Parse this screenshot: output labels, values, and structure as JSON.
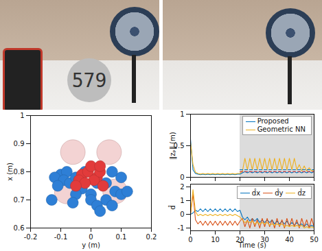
{
  "photos": {
    "display_reading": "579"
  },
  "chart_data": [
    {
      "type": "scatter",
      "xlabel": "y (m)",
      "ylabel": "x (m)",
      "xlim": [
        -0.2,
        0.2
      ],
      "ylim": [
        0.6,
        1
      ],
      "xticks": [
        -0.2,
        -0.1,
        0,
        0.1,
        0.2
      ],
      "yticks": [
        0.6,
        0.7,
        0.8,
        0.9,
        1
      ],
      "series": [
        {
          "color": "#f3d3d3",
          "marker": "large_circle",
          "x": [
            -0.06,
            0.06,
            -0.08,
            0.08
          ],
          "values": [
            0.87,
            0.87,
            0.73,
            0.73
          ]
        },
        {
          "color": "#2e7fd6",
          "marker": "circle",
          "x": [
            -0.1,
            -0.12,
            -0.08,
            -0.09,
            -0.11,
            -0.07,
            -0.05,
            -0.03,
            0.0,
            -0.05,
            0.02,
            0.05,
            0.08,
            0.1,
            0.12,
            0.1,
            0.07,
            -0.13,
            0.0,
            0.02,
            0.05,
            -0.02,
            0.03,
            0.07,
            -0.06
          ],
          "values": [
            0.79,
            0.78,
            0.8,
            0.77,
            0.75,
            0.76,
            0.78,
            0.74,
            0.72,
            0.72,
            0.76,
            0.76,
            0.73,
            0.72,
            0.73,
            0.78,
            0.8,
            0.7,
            0.7,
            0.68,
            0.7,
            0.8,
            0.66,
            0.68,
            0.69
          ]
        },
        {
          "color": "#e23b3b",
          "marker": "circle",
          "x": [
            -0.03,
            -0.01,
            0.02,
            -0.04,
            0.01,
            0.03,
            -0.02,
            0.04,
            -0.05,
            0.0,
            0.03
          ],
          "values": [
            0.79,
            0.8,
            0.78,
            0.77,
            0.77,
            0.8,
            0.76,
            0.75,
            0.75,
            0.82,
            0.82
          ]
        }
      ]
    },
    {
      "type": "line",
      "ylabel": "‖zₚ‖ (m)",
      "x": [
        0,
        1,
        2,
        3,
        4,
        5,
        6,
        7,
        8,
        9,
        10,
        11,
        12,
        13,
        14,
        15,
        16,
        17,
        18,
        19,
        20,
        21,
        22,
        23,
        24,
        25,
        26,
        27,
        28,
        29,
        30,
        31,
        32,
        33,
        34,
        35,
        36,
        37,
        38,
        39,
        40,
        41,
        42,
        43,
        44,
        45,
        46,
        47,
        48,
        49,
        50
      ],
      "xlim": [
        0,
        50
      ],
      "ylim": [
        0,
        1
      ],
      "xticks": [
        0,
        10,
        20,
        30,
        40,
        50
      ],
      "yticks": [
        0,
        0.5,
        1
      ],
      "tick_labels": "y",
      "shaded_x": [
        20,
        50
      ],
      "legend": "top-right",
      "series": [
        {
          "name": "Proposed",
          "color": "#0072bd",
          "values": [
            0.6,
            0.12,
            0.06,
            0.05,
            0.04,
            0.05,
            0.04,
            0.05,
            0.04,
            0.05,
            0.04,
            0.05,
            0.04,
            0.05,
            0.04,
            0.05,
            0.04,
            0.05,
            0.04,
            0.05,
            0.05,
            0.07,
            0.09,
            0.07,
            0.09,
            0.07,
            0.09,
            0.07,
            0.09,
            0.07,
            0.09,
            0.07,
            0.09,
            0.07,
            0.09,
            0.07,
            0.09,
            0.07,
            0.09,
            0.07,
            0.09,
            0.07,
            0.09,
            0.07,
            0.09,
            0.07,
            0.09,
            0.07,
            0.09,
            0.07,
            0.09
          ]
        },
        {
          "name": "Geometric NN",
          "color": "#edb120",
          "values": [
            0.55,
            0.2,
            0.08,
            0.06,
            0.05,
            0.06,
            0.05,
            0.06,
            0.05,
            0.06,
            0.05,
            0.06,
            0.05,
            0.06,
            0.05,
            0.06,
            0.05,
            0.06,
            0.05,
            0.06,
            0.06,
            0.1,
            0.3,
            0.12,
            0.3,
            0.12,
            0.3,
            0.12,
            0.3,
            0.12,
            0.3,
            0.12,
            0.3,
            0.12,
            0.3,
            0.12,
            0.3,
            0.12,
            0.3,
            0.12,
            0.3,
            0.12,
            0.3,
            0.12,
            0.2,
            0.1,
            0.18,
            0.1,
            0.15,
            0.1,
            0.12
          ]
        },
        {
          "color": "#0072bd",
          "line_style": "dashed",
          "x": [
            20,
            50
          ],
          "values": [
            0.12,
            0.12
          ]
        },
        {
          "color": "#d62728",
          "line_style": "dashed",
          "x": [
            20,
            50
          ],
          "values": [
            0.09,
            0.09
          ]
        }
      ]
    },
    {
      "type": "line",
      "xlabel": "Time (s)",
      "ylabel": "d̂",
      "x": [
        0,
        1,
        2,
        3,
        4,
        5,
        6,
        7,
        8,
        9,
        10,
        11,
        12,
        13,
        14,
        15,
        16,
        17,
        18,
        19,
        20,
        21,
        22,
        23,
        24,
        25,
        26,
        27,
        28,
        29,
        30,
        31,
        32,
        33,
        34,
        35,
        36,
        37,
        38,
        39,
        40,
        41,
        42,
        43,
        44,
        45,
        46,
        47,
        48,
        49,
        50
      ],
      "xlim": [
        0,
        50
      ],
      "ylim": [
        -1.2,
        2.2
      ],
      "xticks": [
        0,
        10,
        20,
        30,
        40,
        50
      ],
      "yticks": [
        -1,
        0,
        1,
        2
      ],
      "shaded_x": [
        20,
        50
      ],
      "legend": "top-right",
      "series": [
        {
          "name": "d̂x",
          "color": "#0072bd",
          "values": [
            0,
            0.1,
            0.3,
            0.2,
            0.4,
            0.2,
            0.4,
            0.2,
            0.4,
            0.2,
            0.4,
            0.2,
            0.4,
            0.2,
            0.4,
            0.2,
            0.4,
            0.2,
            0.4,
            0.2,
            0.3,
            -0.2,
            -0.4,
            -0.2,
            -0.5,
            -0.3,
            -0.5,
            -0.3,
            -0.6,
            -0.4,
            -0.6,
            -0.4,
            -0.6,
            -0.4,
            -0.7,
            -0.5,
            -0.7,
            -0.5,
            -0.7,
            -0.5,
            -0.8,
            -0.6,
            -0.8,
            -0.6,
            -0.8,
            -0.7,
            -0.9,
            -0.7,
            -0.9,
            -0.8,
            -0.9
          ]
        },
        {
          "name": "d̂y",
          "color": "#d95319",
          "values": [
            0,
            1.5,
            -0.4,
            -0.7,
            -0.5,
            -0.8,
            -0.5,
            -0.8,
            -0.5,
            -0.8,
            -0.5,
            -0.8,
            -0.5,
            -0.8,
            -0.5,
            -0.8,
            -0.5,
            -0.8,
            -0.5,
            -0.8,
            -0.5,
            -0.3,
            -0.9,
            -0.4,
            -1.0,
            -0.3,
            -0.9,
            -0.4,
            -1.0,
            -0.3,
            -0.9,
            -0.3,
            -0.9,
            -0.4,
            -1.0,
            -0.3,
            -0.9,
            -0.4,
            -1.0,
            -0.3,
            -0.9,
            -0.3,
            -0.9,
            -0.4,
            -1.0,
            -0.3,
            -0.9,
            -0.4,
            -1.0,
            -0.3,
            -0.9
          ]
        },
        {
          "name": "d̂z",
          "color": "#edb120",
          "values": [
            0,
            1.8,
            0.2,
            -0.1,
            0,
            -0.1,
            0,
            -0.1,
            0,
            -0.1,
            0,
            -0.1,
            0,
            -0.1,
            0,
            -0.1,
            0,
            -0.1,
            0,
            -0.1,
            -0.2,
            -0.4,
            -0.6,
            -0.5,
            -0.6,
            -0.5,
            -0.7,
            -0.6,
            -0.7,
            -0.6,
            -0.7,
            -0.6,
            -0.8,
            -0.7,
            -0.8,
            -0.7,
            -0.8,
            -0.7,
            -0.9,
            -0.8,
            -0.9,
            -0.8,
            -0.9,
            -0.8,
            -0.9,
            -0.8,
            -1.0,
            -0.9,
            -1.0,
            -0.9,
            -1.0
          ]
        }
      ]
    }
  ]
}
